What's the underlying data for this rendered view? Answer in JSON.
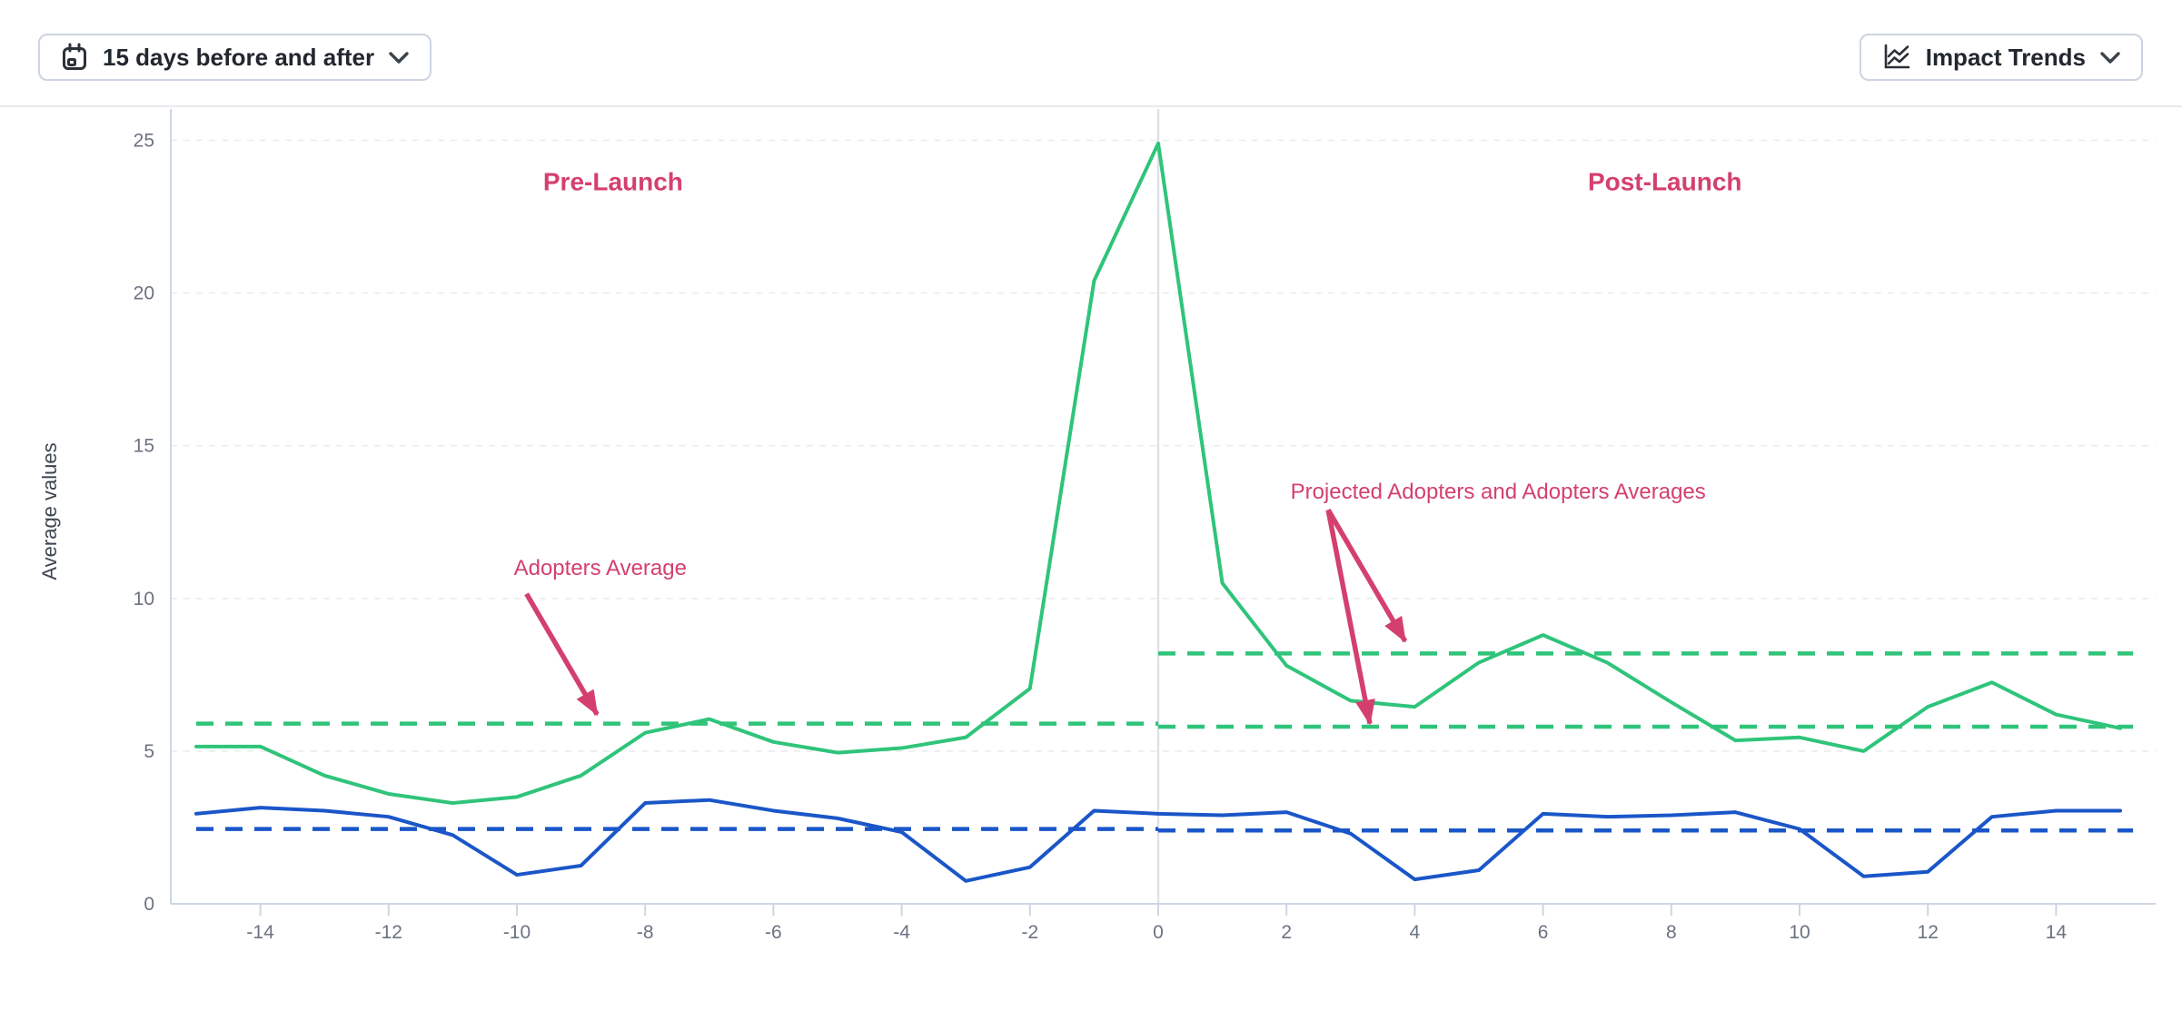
{
  "toolbar": {
    "date_range_button": {
      "label": "15 days before and after",
      "icon": "calendar-icon"
    },
    "chart_type_button": {
      "label": "Impact Trends",
      "icon": "trend-lines-icon"
    }
  },
  "colors": {
    "green": "#2fc47a",
    "blue": "#1a56c8",
    "pink": "#d4406e",
    "axis_line": "#ccd6e2",
    "grid_line": "#ececee",
    "launch_line": "#dde1e7",
    "tick_text": "#6b7280",
    "axis_title_text": "#3d4550"
  },
  "chart_data": {
    "type": "line",
    "title": "",
    "xlabel": "",
    "ylabel": "Average values",
    "x_tick_labels": [
      -14,
      -12,
      -10,
      -8,
      -6,
      -4,
      -2,
      0,
      2,
      4,
      6,
      8,
      10,
      12,
      14
    ],
    "y_tick_labels": [
      0,
      5,
      10,
      15,
      20,
      25
    ],
    "xlim": [
      -15.4,
      15.5
    ],
    "ylim": [
      0,
      26
    ],
    "grid": true,
    "legend_position": "none",
    "x": [
      -15,
      -14,
      -13,
      -12,
      -11,
      -10,
      -9,
      -8,
      -7,
      -6,
      -5,
      -4,
      -3,
      -2,
      -1,
      0,
      1,
      2,
      3,
      4,
      5,
      6,
      7,
      8,
      9,
      10,
      11,
      12,
      13,
      14,
      15
    ],
    "series": [
      {
        "name": "adopters-green",
        "color": "#2fc47a",
        "values": [
          5.15,
          5.15,
          4.2,
          3.6,
          3.3,
          3.5,
          4.2,
          5.6,
          6.05,
          5.3,
          4.95,
          5.1,
          5.45,
          7.05,
          20.4,
          24.9,
          10.5,
          7.8,
          6.65,
          6.45,
          7.9,
          8.8,
          7.9,
          6.6,
          5.35,
          5.45,
          5.0,
          6.45,
          7.25,
          6.2,
          5.75
        ]
      },
      {
        "name": "non-adopters-blue",
        "color": "#1a56c8",
        "values": [
          2.95,
          3.15,
          3.05,
          2.85,
          2.25,
          0.95,
          1.25,
          3.3,
          3.4,
          3.05,
          2.8,
          2.35,
          0.75,
          1.2,
          3.05,
          2.95,
          2.9,
          3.0,
          2.3,
          0.8,
          1.1,
          2.95,
          2.85,
          2.9,
          3.0,
          2.45,
          0.9,
          1.05,
          2.85,
          3.05,
          3.05
        ]
      }
    ],
    "reference_lines": [
      {
        "name": "adopters-average-pre",
        "value": 5.9,
        "x_from": -15,
        "x_to": 0,
        "color": "#2fc47a"
      },
      {
        "name": "adopters-average-post",
        "value": 5.8,
        "x_from": 0,
        "x_to": 15.2,
        "color": "#2fc47a"
      },
      {
        "name": "projected-adopters-average",
        "value": 8.2,
        "x_from": 0,
        "x_to": 15.2,
        "color": "#2fc47a"
      },
      {
        "name": "blue-average-pre",
        "value": 2.45,
        "x_from": -15,
        "x_to": 0,
        "color": "#1a56c8"
      },
      {
        "name": "blue-average-post",
        "value": 2.4,
        "x_from": 0,
        "x_to": 15.2,
        "color": "#1a56c8"
      }
    ],
    "launch_line_x": 0,
    "annotations": [
      {
        "text": "Pre-Launch",
        "x": -8.5,
        "y": 23.6,
        "bold": true,
        "arrows": []
      },
      {
        "text": "Post-Launch",
        "x": 7.9,
        "y": 23.6,
        "bold": true,
        "arrows": []
      },
      {
        "text": "Adopters Average",
        "x": -8.7,
        "y": 11.0,
        "bold": false,
        "arrows": [
          {
            "from": [
              -9.85,
              10.15
            ],
            "to": [
              -8.75,
              6.2
            ]
          }
        ]
      },
      {
        "text": "Projected Adopters and Adopters Averages",
        "x": 5.3,
        "y": 13.5,
        "bold": false,
        "arrows": [
          {
            "from": [
              2.65,
              12.9
            ],
            "to": [
              3.85,
              8.6
            ]
          },
          {
            "from": [
              2.65,
              12.9
            ],
            "to": [
              3.3,
              5.9
            ]
          }
        ]
      }
    ]
  }
}
